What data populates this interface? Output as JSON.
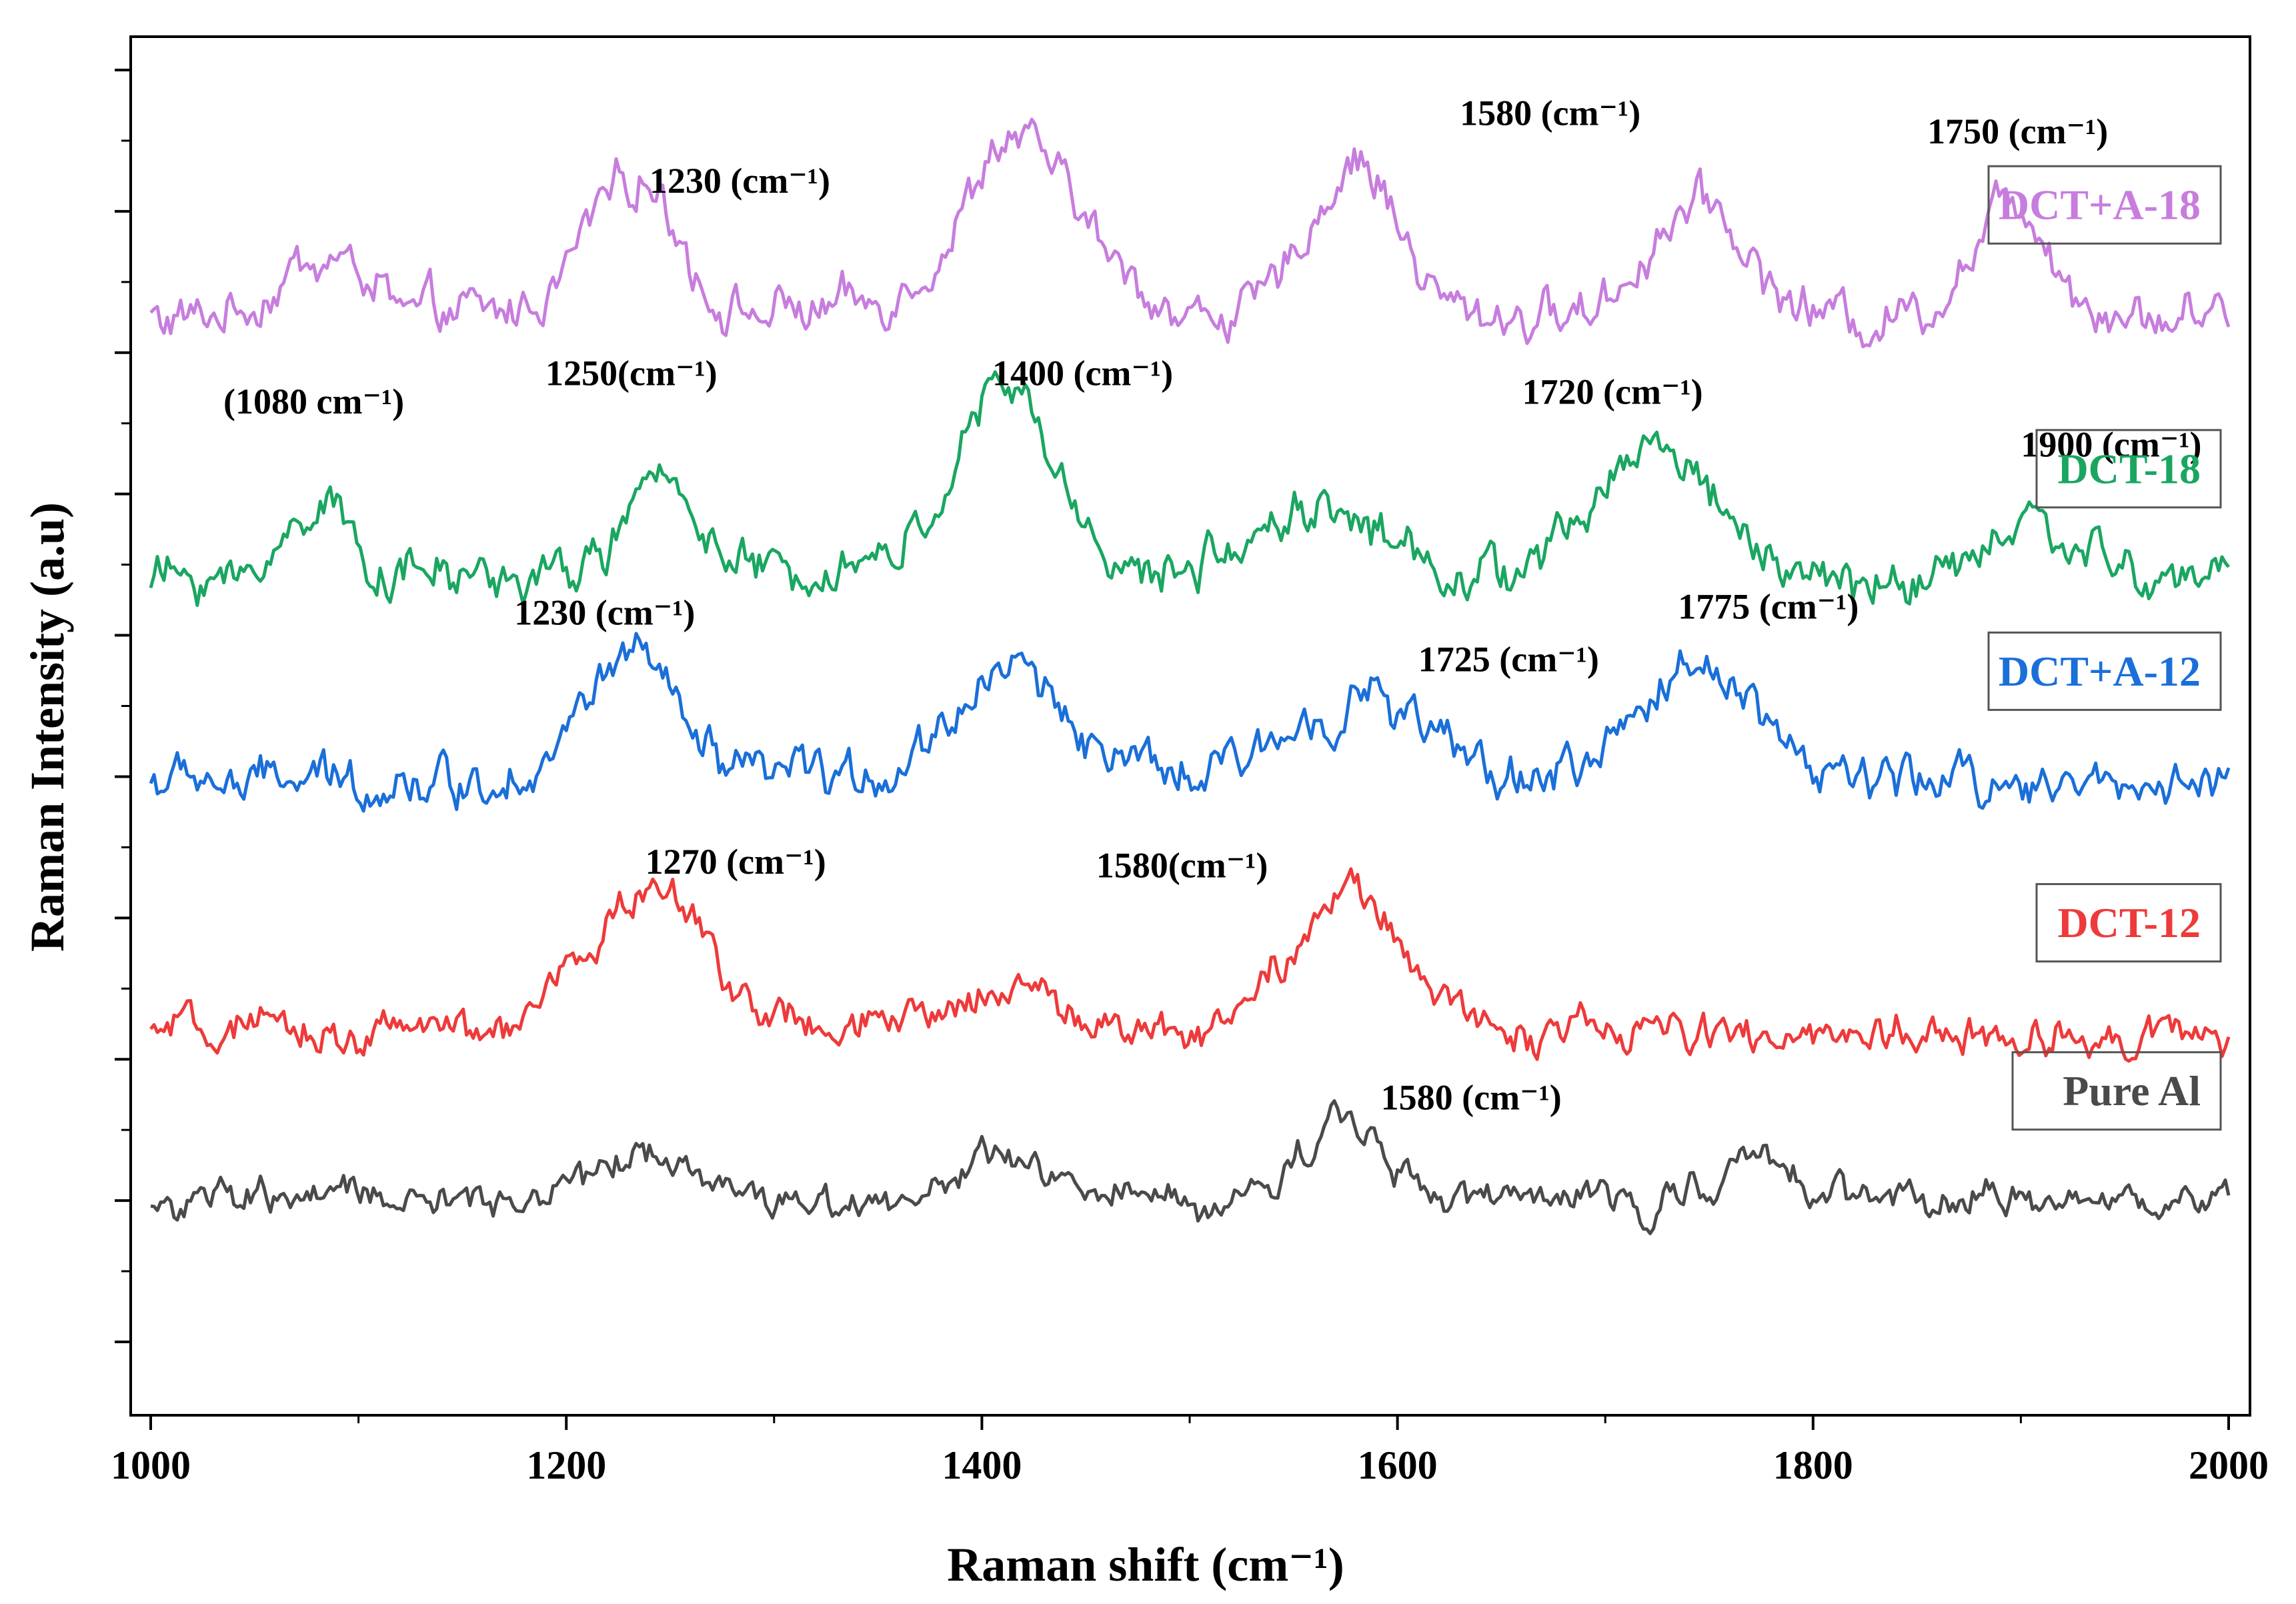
{
  "chart_data": {
    "type": "line",
    "xlabel": "Raman shift (cm⁻¹)",
    "ylabel": "Raman Intensity (a.u)",
    "xlim": [
      1000,
      2000
    ],
    "xticks": [
      "1000",
      "1200",
      "1400",
      "1600",
      "1800",
      "2000"
    ],
    "y_tick_labels_shown": false,
    "series": [
      {
        "name": "DCT+A-18",
        "color": "#c77dde",
        "baseline": 0.83,
        "peaks": [
          {
            "x": 1085,
            "w": 25,
            "h": 0.05
          },
          {
            "x": 1230,
            "w": 30,
            "h": 0.12
          },
          {
            "x": 1420,
            "w": 40,
            "h": 0.14
          },
          {
            "x": 1580,
            "w": 30,
            "h": 0.12
          },
          {
            "x": 1745,
            "w": 30,
            "h": 0.1
          },
          {
            "x": 1895,
            "w": 25,
            "h": 0.1
          }
        ],
        "noise": 0.03,
        "annotations": [
          {
            "text": "1230 (cm⁻¹)",
            "x": 1240,
            "y": 0.93
          },
          {
            "text": "1580 (cm⁻¹)",
            "x": 1630,
            "y": 0.985
          },
          {
            "text": "1750 (cm⁻¹)",
            "x": 1855,
            "y": 0.97
          }
        ]
      },
      {
        "name": "DCT-18",
        "color": "#1aa661",
        "baseline": 0.615,
        "peaks": [
          {
            "x": 1082,
            "w": 20,
            "h": 0.07
          },
          {
            "x": 1248,
            "w": 25,
            "h": 0.08
          },
          {
            "x": 1410,
            "w": 35,
            "h": 0.15
          },
          {
            "x": 1560,
            "w": 40,
            "h": 0.06
          },
          {
            "x": 1725,
            "w": 40,
            "h": 0.11
          },
          {
            "x": 1905,
            "w": 30,
            "h": 0.05
          }
        ],
        "noise": 0.03,
        "annotations": [
          {
            "text": "(1080 cm⁻¹)",
            "x": 1035,
            "y": 0.75
          },
          {
            "text": "1250(cm⁻¹)",
            "x": 1190,
            "y": 0.773
          },
          {
            "text": "1400 (cm⁻¹)",
            "x": 1405,
            "y": 0.773
          },
          {
            "text": "1720 (cm⁻¹)",
            "x": 1660,
            "y": 0.758
          },
          {
            "text": "1900 (cm⁻¹)",
            "x": 1900,
            "y": 0.715
          }
        ]
      },
      {
        "name": "DCT+A-12",
        "color": "#1a6fd9",
        "baseline": 0.45,
        "peaks": [
          {
            "x": 1230,
            "w": 30,
            "h": 0.1
          },
          {
            "x": 1415,
            "w": 40,
            "h": 0.09
          },
          {
            "x": 1580,
            "w": 45,
            "h": 0.07
          },
          {
            "x": 1745,
            "w": 40,
            "h": 0.1
          }
        ],
        "noise": 0.03,
        "annotations": [
          {
            "text": "1230 (cm⁻¹)",
            "x": 1175,
            "y": 0.578
          },
          {
            "text": "1725 (cm⁻¹)",
            "x": 1610,
            "y": 0.54
          },
          {
            "text": "1775 (cm⁻¹)",
            "x": 1735,
            "y": 0.583
          }
        ]
      },
      {
        "name": "DCT-12",
        "color": "#ee3a3a",
        "baseline": 0.245,
        "peaks": [
          {
            "x": 1240,
            "w": 40,
            "h": 0.12
          },
          {
            "x": 1410,
            "w": 35,
            "h": 0.04
          },
          {
            "x": 1575,
            "w": 40,
            "h": 0.11
          }
        ],
        "noise": 0.025,
        "annotations": [
          {
            "text": "1270 (cm⁻¹)",
            "x": 1238,
            "y": 0.375
          },
          {
            "text": "1580(cm⁻¹)",
            "x": 1455,
            "y": 0.372
          }
        ]
      },
      {
        "name": "Pure Al",
        "color": "#4a4a4a",
        "baseline": 0.108,
        "peaks": [
          {
            "x": 1235,
            "w": 40,
            "h": 0.04
          },
          {
            "x": 1410,
            "w": 35,
            "h": 0.03
          },
          {
            "x": 1575,
            "w": 30,
            "h": 0.07
          },
          {
            "x": 1770,
            "w": 30,
            "h": 0.03
          }
        ],
        "noise": 0.022,
        "annotations": [
          {
            "text": "1580 (cm⁻¹)",
            "x": 1592,
            "y": 0.183
          }
        ]
      }
    ]
  }
}
